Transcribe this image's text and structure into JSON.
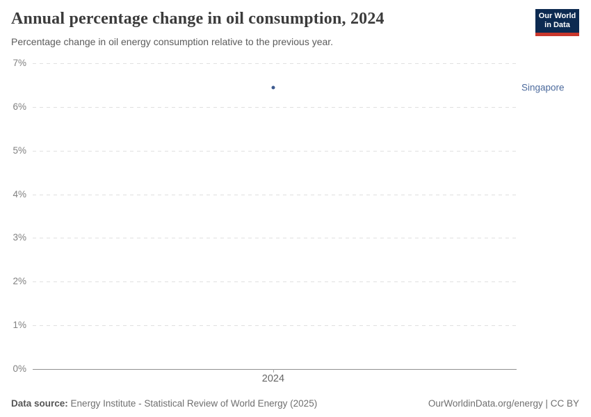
{
  "header": {
    "logo": {
      "line1": "Our World",
      "line2": "in Data"
    }
  },
  "chart_data": {
    "type": "scatter",
    "title": "Annual percentage change in oil consumption, 2024",
    "subtitle": "Percentage change in oil energy consumption relative to the previous year.",
    "x": [
      2024
    ],
    "series": [
      {
        "name": "Singapore",
        "values": [
          6.45
        ],
        "color": "#3d5a8f",
        "label_color": "#4c6a9c"
      }
    ],
    "xlabel": "",
    "ylabel": "",
    "ylim": [
      0,
      7
    ],
    "yticks": [
      0,
      1,
      2,
      3,
      4,
      5,
      6,
      7
    ],
    "ytick_suffix": "%",
    "xticks": [
      "2024"
    ],
    "grid": "horizontal-dashed",
    "legend_position": "right-of-point"
  },
  "footer": {
    "source_label": "Data source:",
    "source_text": "Energy Institute - Statistical Review of World Energy (2025)",
    "note": "OurWorldinData.org/energy | CC BY"
  },
  "colors": {
    "accent": "#3d5a8f",
    "entity_label": "#4c6a9c",
    "logo_bg": "#0c2a51",
    "logo_stripe": "#c9372c",
    "gridline": "#e0e0e0",
    "axis_line": "#8f8f8f"
  }
}
